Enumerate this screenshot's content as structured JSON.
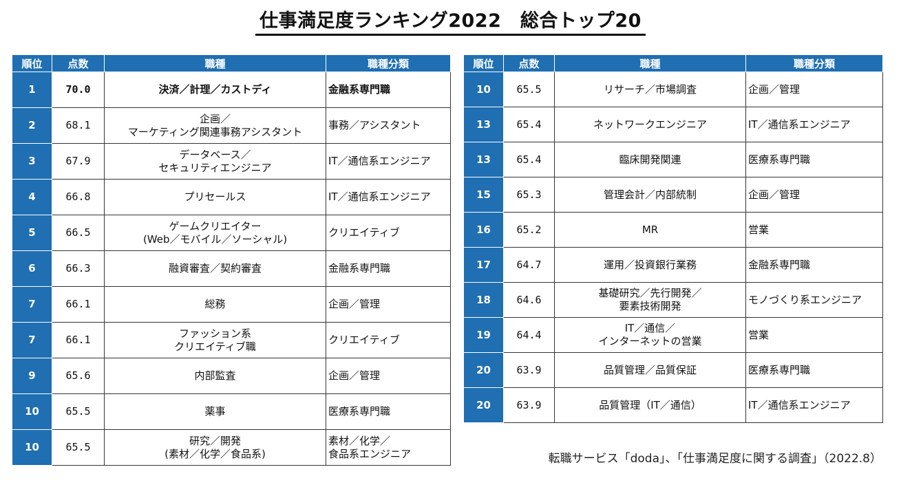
{
  "title": "仕事満足度ランキング2022　総合トップ20",
  "headers": {
    "rank": "順位",
    "score": "点数",
    "job": "職種",
    "category": "職種分類"
  },
  "left_rows": [
    {
      "rank": "1",
      "score": "70.0",
      "job": [
        "決済／計理／カストディ"
      ],
      "category": [
        "金融系専門職"
      ]
    },
    {
      "rank": "2",
      "score": "68.1",
      "job": [
        "企画／",
        "マーケティング関連事務アシスタント"
      ],
      "category": [
        "事務／アシスタント"
      ]
    },
    {
      "rank": "3",
      "score": "67.9",
      "job": [
        "データベース／",
        "セキュリティエンジニア"
      ],
      "category": [
        "IT／通信系エンジニア"
      ]
    },
    {
      "rank": "4",
      "score": "66.8",
      "job": [
        "プリセールス"
      ],
      "category": [
        "IT／通信系エンジニア"
      ]
    },
    {
      "rank": "5",
      "score": "66.5",
      "job": [
        "ゲームクリエイター",
        "(Web／モバイル／ソーシャル)"
      ],
      "category": [
        "クリエイティブ"
      ]
    },
    {
      "rank": "6",
      "score": "66.3",
      "job": [
        "融資審査／契約審査"
      ],
      "category": [
        "金融系専門職"
      ]
    },
    {
      "rank": "7",
      "score": "66.1",
      "job": [
        "総務"
      ],
      "category": [
        "企画／管理"
      ]
    },
    {
      "rank": "7",
      "score": "66.1",
      "job": [
        "ファッション系",
        "クリエイティブ職"
      ],
      "category": [
        "クリエイティブ"
      ]
    },
    {
      "rank": "9",
      "score": "65.6",
      "job": [
        "内部監査"
      ],
      "category": [
        "企画／管理"
      ]
    },
    {
      "rank": "10",
      "score": "65.5",
      "job": [
        "薬事"
      ],
      "category": [
        "医療系専門職"
      ]
    },
    {
      "rank": "10",
      "score": "65.5",
      "job": [
        "研究／開発",
        "(素材／化学／食品系)"
      ],
      "category": [
        "素材／化学／",
        "食品系エンジニア"
      ]
    }
  ],
  "right_rows": [
    {
      "rank": "10",
      "score": "65.5",
      "job": [
        "リサーチ／市場調査"
      ],
      "category": [
        "企画／管理"
      ]
    },
    {
      "rank": "13",
      "score": "65.4",
      "job": [
        "ネットワークエンジニア"
      ],
      "category": [
        "IT／通信系エンジニア"
      ]
    },
    {
      "rank": "13",
      "score": "65.4",
      "job": [
        "臨床開発関連"
      ],
      "category": [
        "医療系専門職"
      ]
    },
    {
      "rank": "15",
      "score": "65.3",
      "job": [
        "管理会計／内部統制"
      ],
      "category": [
        "企画／管理"
      ]
    },
    {
      "rank": "16",
      "score": "65.2",
      "job": [
        "MR"
      ],
      "category": [
        "営業"
      ]
    },
    {
      "rank": "17",
      "score": "64.7",
      "job": [
        "運用／投資銀行業務"
      ],
      "category": [
        "金融系専門職"
      ]
    },
    {
      "rank": "18",
      "score": "64.6",
      "job": [
        "基礎研究／先行開発／",
        "要素技術開発"
      ],
      "category": [
        "モノづくり系エンジニア"
      ]
    },
    {
      "rank": "19",
      "score": "64.4",
      "job": [
        "IT／通信／",
        "インターネットの営業"
      ],
      "category": [
        "営業"
      ]
    },
    {
      "rank": "20",
      "score": "63.9",
      "job": [
        "品質管理／品質保証"
      ],
      "category": [
        "医療系専門職"
      ]
    },
    {
      "rank": "20",
      "score": "63.9",
      "job": [
        "品質管理（IT／通信）"
      ],
      "category": [
        "IT／通信系エンジニア"
      ]
    }
  ],
  "source": "転職サービス「doda」、「仕事満足度に関する調査」（2022.8）",
  "colors": {
    "header_blue": "#1f6fb2"
  }
}
